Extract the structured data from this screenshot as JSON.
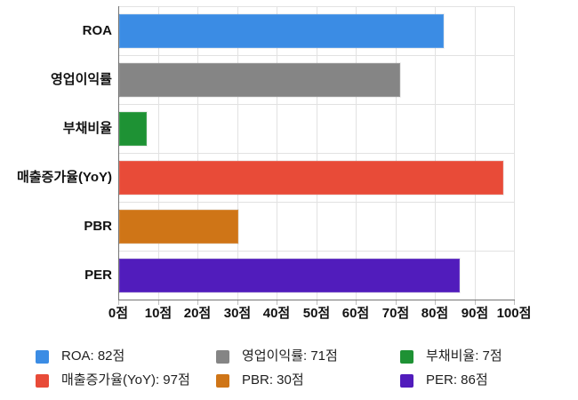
{
  "chart_data": {
    "type": "bar",
    "orientation": "horizontal",
    "title": "",
    "categories": [
      "ROA",
      "영업이익률",
      "부채비율",
      "매출증가율(YoY)",
      "PBR",
      "PER"
    ],
    "values": [
      82,
      71,
      7,
      97,
      30,
      86
    ],
    "value_unit": "점",
    "colors": [
      "#3b8ce4",
      "#858585",
      "#1e9234",
      "#e84b38",
      "#cf7517",
      "#511cbc"
    ],
    "xlim": [
      0,
      100
    ],
    "x_tick_labels": [
      "0점",
      "10점",
      "20점",
      "30점",
      "40점",
      "50점",
      "60점",
      "70점",
      "80점",
      "90점",
      "100점"
    ],
    "grid": true,
    "legend_position": "bottom",
    "legend": [
      {
        "label": "ROA: 82점",
        "color": "#3b8ce4"
      },
      {
        "label": "영업이익률: 71점",
        "color": "#858585"
      },
      {
        "label": "부채비율: 7점",
        "color": "#1e9234"
      },
      {
        "label": "매출증가율(YoY): 97점",
        "color": "#e84b38"
      },
      {
        "label": "PBR: 30점",
        "color": "#cf7517"
      },
      {
        "label": "PER: 86점",
        "color": "#511cbc"
      }
    ]
  },
  "theme": {
    "background": "#ffffff",
    "grid_color": "#e2e2e2",
    "axis_color": "#757575",
    "tick_color": "#bdbdbd",
    "label_color": "#111111",
    "legend_text_color": "#1f1f1f"
  }
}
